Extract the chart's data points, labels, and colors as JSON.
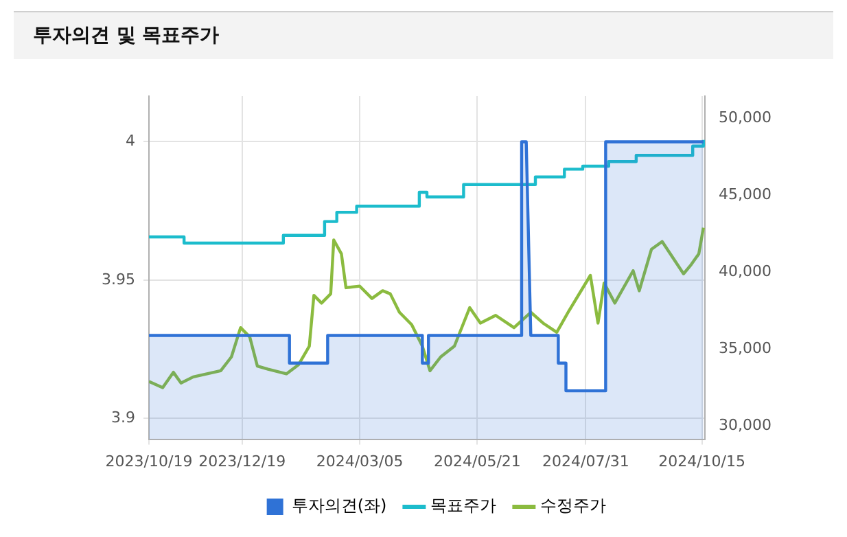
{
  "chart_data": {
    "type": "line",
    "title": "투자의견 및 목표주가",
    "xlim": [
      "2023-10-19",
      "2024-10-17"
    ],
    "xticks": [
      {
        "value": "2023-10-19",
        "label": "2023/10/19"
      },
      {
        "value": "2023-12-19",
        "label": "2023/12/19"
      },
      {
        "value": "2024-03-05",
        "label": "2024/03/05"
      },
      {
        "value": "2024-05-21",
        "label": "2024/05/21"
      },
      {
        "value": "2024-07-31",
        "label": "2024/07/31"
      },
      {
        "value": "2024-10-15",
        "label": "2024/10/15"
      }
    ],
    "ylim": [
      3.8925,
      4.0165
    ],
    "yticks": [
      3.9,
      3.95,
      4
    ],
    "y2lim": [
      29150,
      51450
    ],
    "y2ticks": [
      {
        "value": 30000,
        "label": "30,000"
      },
      {
        "value": 35000,
        "label": "35,000"
      },
      {
        "value": 40000,
        "label": "40,000"
      },
      {
        "value": 45000,
        "label": "45,000"
      },
      {
        "value": 50000,
        "label": "50,000"
      }
    ],
    "grid": true,
    "legend": "bottom",
    "marker": "none",
    "series": [
      {
        "name": "투자의견(좌)",
        "type": "area",
        "color": "#2f72d6",
        "x": [
          "2023-10-19",
          "2024-01-19",
          "2024-01-19",
          "2024-02-13",
          "2024-02-13",
          "2024-04-15",
          "2024-04-15",
          "2024-04-19",
          "2024-04-19",
          "2024-06-19",
          "2024-06-19",
          "2024-06-22",
          "2024-06-25",
          "2024-07-13",
          "2024-07-13",
          "2024-07-18",
          "2024-07-18",
          "2024-08-13",
          "2024-08-13",
          "2024-10-16"
        ],
        "values": [
          3.93,
          3.93,
          3.92,
          3.92,
          3.93,
          3.93,
          3.92,
          3.92,
          3.93,
          3.93,
          4.0,
          4.0,
          3.93,
          3.93,
          3.92,
          3.92,
          3.91,
          3.91,
          4.0,
          4.0
        ]
      },
      {
        "name": "목표주가",
        "type": "step",
        "axis": "y2",
        "color": "#1cbccc",
        "x": [
          "2023-10-19",
          "2023-11-11",
          "2024-01-15",
          "2024-02-11",
          "2024-02-19",
          "2024-03-03",
          "2024-04-13",
          "2024-04-18",
          "2024-05-12",
          "2024-06-28",
          "2024-07-17",
          "2024-07-29",
          "2024-08-15",
          "2024-09-02",
          "2024-10-09",
          "2024-10-16"
        ],
        "values": [
          42300,
          41900,
          42400,
          43300,
          43900,
          44300,
          45200,
          44900,
          45700,
          46200,
          46700,
          46900,
          47200,
          47600,
          48200,
          48600
        ]
      },
      {
        "name": "수정주가",
        "type": "line",
        "axis": "y2",
        "color": "#8bbb3f",
        "x": [
          "2023-10-19",
          "2023-10-28",
          "2023-11-04",
          "2023-11-09",
          "2023-11-17",
          "2023-12-05",
          "2023-12-12",
          "2023-12-18",
          "2023-12-24",
          "2023-12-29",
          "2024-01-05",
          "2024-01-17",
          "2024-01-25",
          "2024-02-01",
          "2024-02-04",
          "2024-02-09",
          "2024-02-15",
          "2024-02-17",
          "2024-02-22",
          "2024-02-25",
          "2024-03-05",
          "2024-03-13",
          "2024-03-20",
          "2024-03-25",
          "2024-03-31",
          "2024-04-08",
          "2024-04-15",
          "2024-04-20",
          "2024-04-27",
          "2024-05-06",
          "2024-05-16",
          "2024-05-23",
          "2024-06-02",
          "2024-06-14",
          "2024-06-25",
          "2024-07-03",
          "2024-07-12",
          "2024-07-20",
          "2024-08-03",
          "2024-08-08",
          "2024-08-12",
          "2024-08-19",
          "2024-08-31",
          "2024-09-04",
          "2024-09-12",
          "2024-09-19",
          "2024-10-03",
          "2024-10-08",
          "2024-10-13",
          "2024-10-16"
        ],
        "values": [
          32900,
          32500,
          33500,
          32800,
          33200,
          33600,
          34500,
          36400,
          35800,
          33900,
          33700,
          33400,
          34000,
          35200,
          38500,
          38000,
          38600,
          42100,
          41200,
          39000,
          39100,
          38300,
          38800,
          38600,
          37400,
          36600,
          35200,
          33600,
          34500,
          35200,
          37700,
          36700,
          37200,
          36400,
          37400,
          36700,
          36100,
          37500,
          39800,
          36700,
          39300,
          38000,
          40100,
          38800,
          41500,
          42000,
          39900,
          40500,
          41200,
          42900
        ]
      }
    ]
  }
}
